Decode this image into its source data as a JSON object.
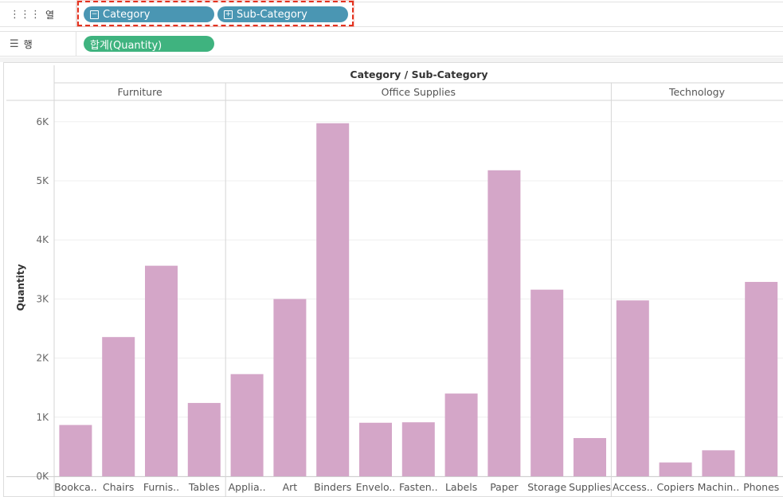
{
  "shelves": {
    "columns": {
      "label": "열",
      "pills": [
        {
          "label": "Category",
          "toggle": "−"
        },
        {
          "label": "Sub-Category",
          "toggle": "+"
        }
      ]
    },
    "rows": {
      "label": "행",
      "pills": [
        {
          "label": "합계(Quantity)"
        }
      ]
    }
  },
  "colors": {
    "bar": "#d4a6c8",
    "column_pill": "#4a96b3",
    "row_pill": "#3fb37f",
    "highlight": "#e3321f"
  },
  "chart_data": {
    "type": "bar",
    "title": "Category / Sub-Category",
    "ylabel": "Quantity",
    "ylim": [
      0,
      6300
    ],
    "yticks": [
      0,
      1000,
      2000,
      3000,
      4000,
      5000,
      6000
    ],
    "ytick_labels": [
      "0K",
      "1K",
      "2K",
      "3K",
      "4K",
      "5K",
      "6K"
    ],
    "grid": true,
    "groups": [
      {
        "name": "Furniture",
        "categories": [
          "Bookca..",
          "Chairs",
          "Furnis..",
          "Tables"
        ],
        "values": [
          868,
          2356,
          3563,
          1241
        ]
      },
      {
        "name": "Office Supplies",
        "categories": [
          "Applia..",
          "Art",
          "Binders",
          "Envelo..",
          "Fasten..",
          "Labels",
          "Paper",
          "Storage",
          "Supplies"
        ],
        "values": [
          1729,
          3000,
          5974,
          906,
          914,
          1400,
          5178,
          3158,
          647
        ]
      },
      {
        "name": "Technology",
        "categories": [
          "Access..",
          "Copiers",
          "Machin..",
          "Phones"
        ],
        "values": [
          2976,
          234,
          440,
          3289
        ]
      }
    ]
  }
}
